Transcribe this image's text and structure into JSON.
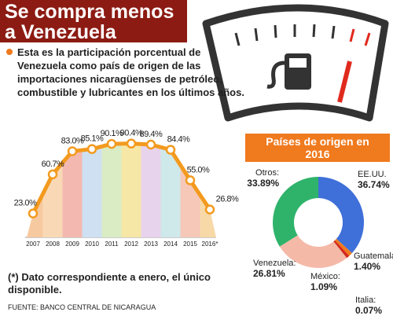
{
  "header": {
    "title": "Se compra menos a Venezuela",
    "description": "Esta es la participación porcentual de Venezuela como país de origen de las importaciones nicaragüenses de petróleo, combustible y lubricantes en los últimos años.",
    "note": "(*) Dato correspondiente a enero, el único disponible.",
    "source": "FUENTE: BANCO CENTRAL DE NICARAGUA"
  },
  "chart_data": [
    {
      "type": "line",
      "categories": [
        "2007",
        "2008",
        "2009",
        "2010",
        "2011",
        "2012",
        "2013",
        "2014",
        "2015",
        "2016*"
      ],
      "values": [
        23.0,
        60.7,
        83.0,
        85.1,
        90.1,
        90.4,
        89.4,
        84.4,
        55.0,
        26.8
      ],
      "value_labels": [
        "23.0%",
        "60.7%",
        "83.0%",
        "85.1%",
        "90.1%",
        "90.4%",
        "89.4%",
        "84.4%",
        "55.0%",
        "26.8%"
      ],
      "color": "#f39a1e",
      "ylim": [
        0,
        100
      ]
    },
    {
      "type": "pie",
      "title": "Países de origen en 2016",
      "categories": [
        "EE.UU.",
        "Guatemala",
        "México:",
        "Italia:",
        "Venezuela:",
        "Otros:"
      ],
      "values": [
        36.74,
        1.4,
        1.09,
        0.07,
        26.81,
        33.89
      ],
      "value_labels": [
        "36.74%",
        "1.40%",
        "1.09%",
        "0.07%",
        "26.81%",
        "33.89%"
      ],
      "colors": [
        "#3f6fd8",
        "#f07a1e",
        "#d6281c",
        "#7a3b1e",
        "#f5b9a8",
        "#2fb36b"
      ],
      "donut": true
    }
  ]
}
